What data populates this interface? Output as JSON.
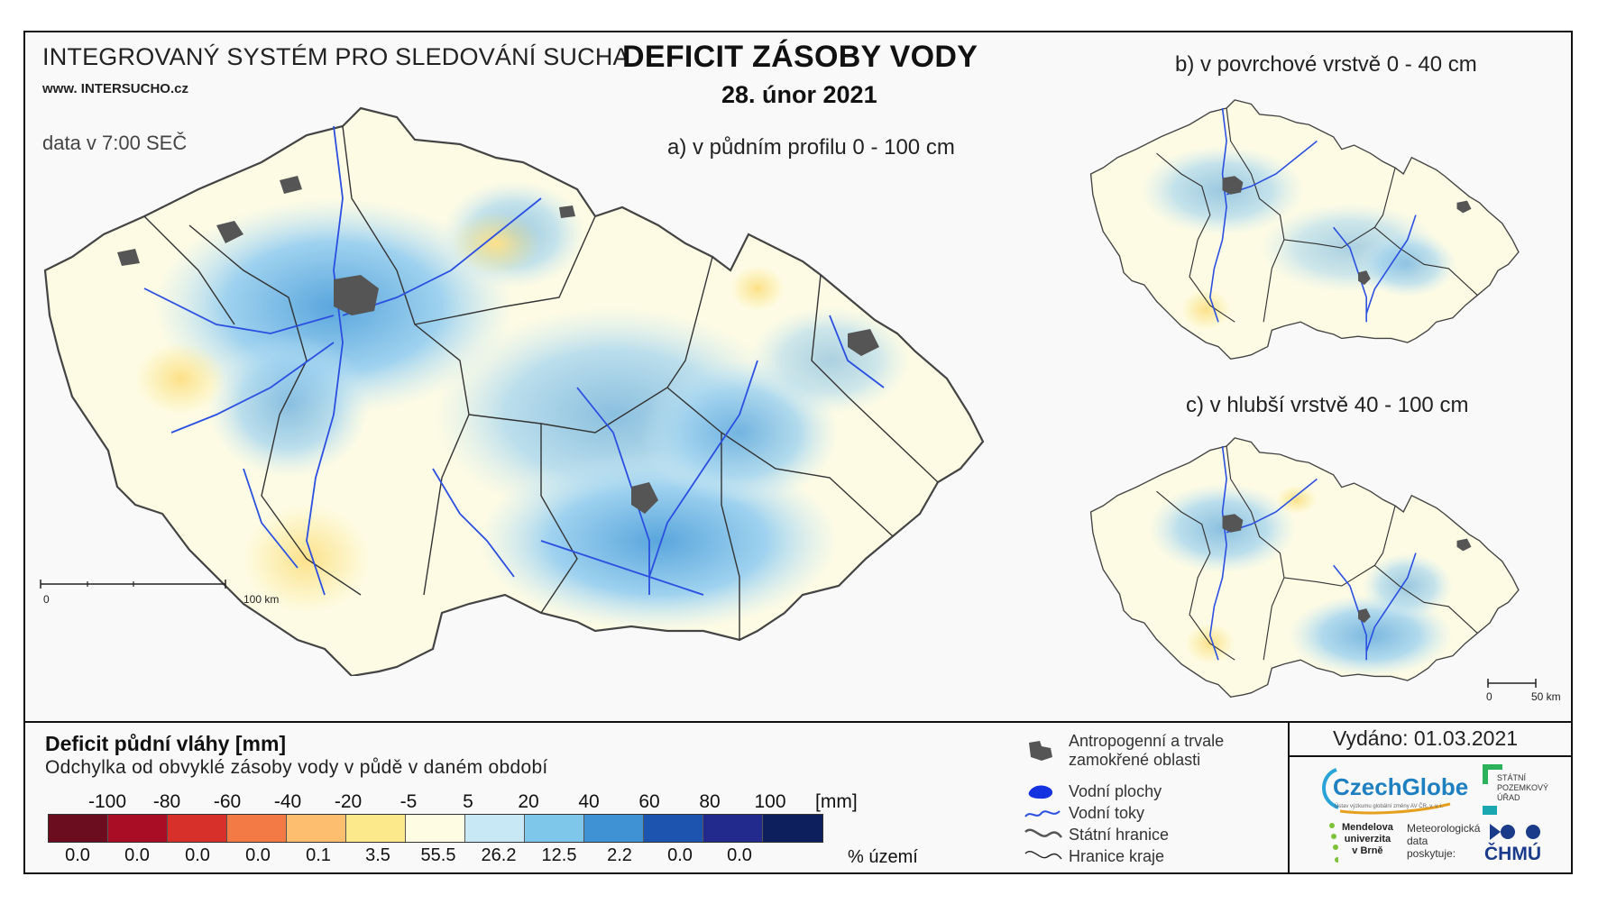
{
  "header": {
    "system_title": "INTEGROVANÝ SYSTÉM PRO SLEDOVÁNÍ SUCHA",
    "website": "www. INTERSUCHO.cz",
    "data_time": "data v 7:00 SEČ",
    "main_title": "DEFICIT ZÁSOBY VODY",
    "date": "28. únor 2021"
  },
  "maps": {
    "a_label": "a) v půdním profilu 0 - 100 cm",
    "b_label": "b) v povrchové vrstvě 0 - 40 cm",
    "c_label": "c) v hlubší vrstvě 40 - 100 cm",
    "scale_main": {
      "zero": "0",
      "end": "100 km"
    },
    "scale_small": {
      "zero": "0",
      "end": "50 km"
    }
  },
  "legend": {
    "title": "Deficit půdní vláhy  [mm]",
    "subtitle": "Odchylka od obvyklé zásoby vody v půdě v daném období",
    "ticks": [
      "-100",
      "-80",
      "-60",
      "-40",
      "-20",
      "-5",
      "5",
      "20",
      "40",
      "60",
      "80",
      "100"
    ],
    "unit": "[mm]",
    "colors": [
      "#6b0d1f",
      "#a80d25",
      "#d7302a",
      "#f47a45",
      "#fdbf6f",
      "#fce98c",
      "#fefde4",
      "#c9e8f6",
      "#7fc7ea",
      "#3f93d4",
      "#1c54b0",
      "#232a8d",
      "#0d1f5c"
    ],
    "percentages": [
      "0.0",
      "0.0",
      "0.0",
      "0.0",
      "0.1",
      "3.5",
      "55.5",
      "26.2",
      "12.5",
      "2.2",
      "0.0",
      "0.0"
    ],
    "pct_label": "% území"
  },
  "symbols": [
    {
      "icon": "urban-area-icon",
      "label": "Antropogenní a trvale\nzamokřené oblasti"
    },
    {
      "icon": "water-body-icon",
      "label": "Vodní plochy"
    },
    {
      "icon": "river-icon",
      "label": "Vodní toky"
    },
    {
      "icon": "state-border-icon",
      "label": "Státní hranice"
    },
    {
      "icon": "region-border-icon",
      "label": "Hranice kraje"
    }
  ],
  "info": {
    "issued": "Vydáno: 01.03.2021",
    "czechglobe": "CzechGlobe",
    "czechglobe_sub": "Ústav výzkumu globální změny AV ČR, v. v. i.",
    "spu": "STÁTNÍ\nPOZEMKOVÝ\nÚŘAD",
    "mendel": "Mendelova\nuniverzita\nv Brně",
    "met": "Meteorologická\ndata\nposkytuje:",
    "chmu": "ČHMÚ"
  }
}
